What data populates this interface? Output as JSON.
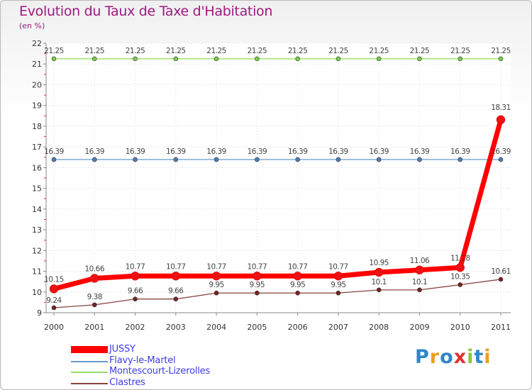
{
  "title": "Evolution du Taux de Taxe d'Habitation",
  "subtitle": "(en %)",
  "logo_text": "Proxiti",
  "logo_colors": [
    "#2e86c8",
    "#e8a020",
    "#2e86c8",
    "#e03030",
    "#8bc43c",
    "#2e86c8",
    "#e8a020"
  ],
  "chart_data": {
    "type": "line",
    "title": "Evolution du Taux de Taxe d'Habitation",
    "ylabel": "(en %)",
    "xlabel": "",
    "ylim": [
      9,
      22
    ],
    "yticks": [
      9,
      10,
      11,
      12,
      13,
      14,
      15,
      16,
      17,
      18,
      19,
      20,
      21,
      22
    ],
    "categories": [
      "2000",
      "2001",
      "2002",
      "2003",
      "2004",
      "2005",
      "2006",
      "2007",
      "2008",
      "2009",
      "2010",
      "2011"
    ],
    "legend_position": "bottom-left",
    "series": [
      {
        "name": "JUSSY",
        "color": "#ff0000",
        "marker": "#ee1111",
        "values": [
          10.15,
          10.66,
          10.77,
          10.77,
          10.77,
          10.77,
          10.77,
          10.77,
          10.95,
          11.06,
          11.18,
          18.31
        ],
        "labels": [
          "10.15",
          "10.66",
          "10.77",
          "10.77",
          "10.77",
          "10.77",
          "10.77",
          "10.77",
          "10.95",
          "11.06",
          "11.18",
          "18.31"
        ]
      },
      {
        "name": "Flavy-le-Martel",
        "color": "#6699cc",
        "marker": "#4a7fb8",
        "values": [
          16.39,
          16.39,
          16.39,
          16.39,
          16.39,
          16.39,
          16.39,
          16.39,
          16.39,
          16.39,
          16.39,
          16.39
        ],
        "labels": [
          "16.39",
          "16.39",
          "16.39",
          "16.39",
          "16.39",
          "16.39",
          "16.39",
          "16.39",
          "16.39",
          "16.39",
          "16.39",
          "16.39"
        ]
      },
      {
        "name": "Montescourt-Lizerolles",
        "color": "#99dd66",
        "marker": "#77cc44",
        "values": [
          21.25,
          21.25,
          21.25,
          21.25,
          21.25,
          21.25,
          21.25,
          21.25,
          21.25,
          21.25,
          21.25,
          21.25
        ],
        "labels": [
          "21.25",
          "21.25",
          "21.25",
          "21.25",
          "21.25",
          "21.25",
          "21.25",
          "21.25",
          "21.25",
          "21.25",
          "21.25",
          "21.25"
        ]
      },
      {
        "name": "Clastres",
        "color": "#884444",
        "marker": "#772222",
        "values": [
          9.24,
          9.38,
          9.66,
          9.66,
          9.95,
          9.95,
          9.95,
          9.95,
          10.1,
          10.1,
          10.35,
          10.61
        ],
        "labels": [
          "9.24",
          "9.38",
          "9.66",
          "9.66",
          "9.95",
          "9.95",
          "9.95",
          "9.95",
          "10.1",
          "10.1",
          "10.35",
          "10.61"
        ]
      }
    ]
  }
}
